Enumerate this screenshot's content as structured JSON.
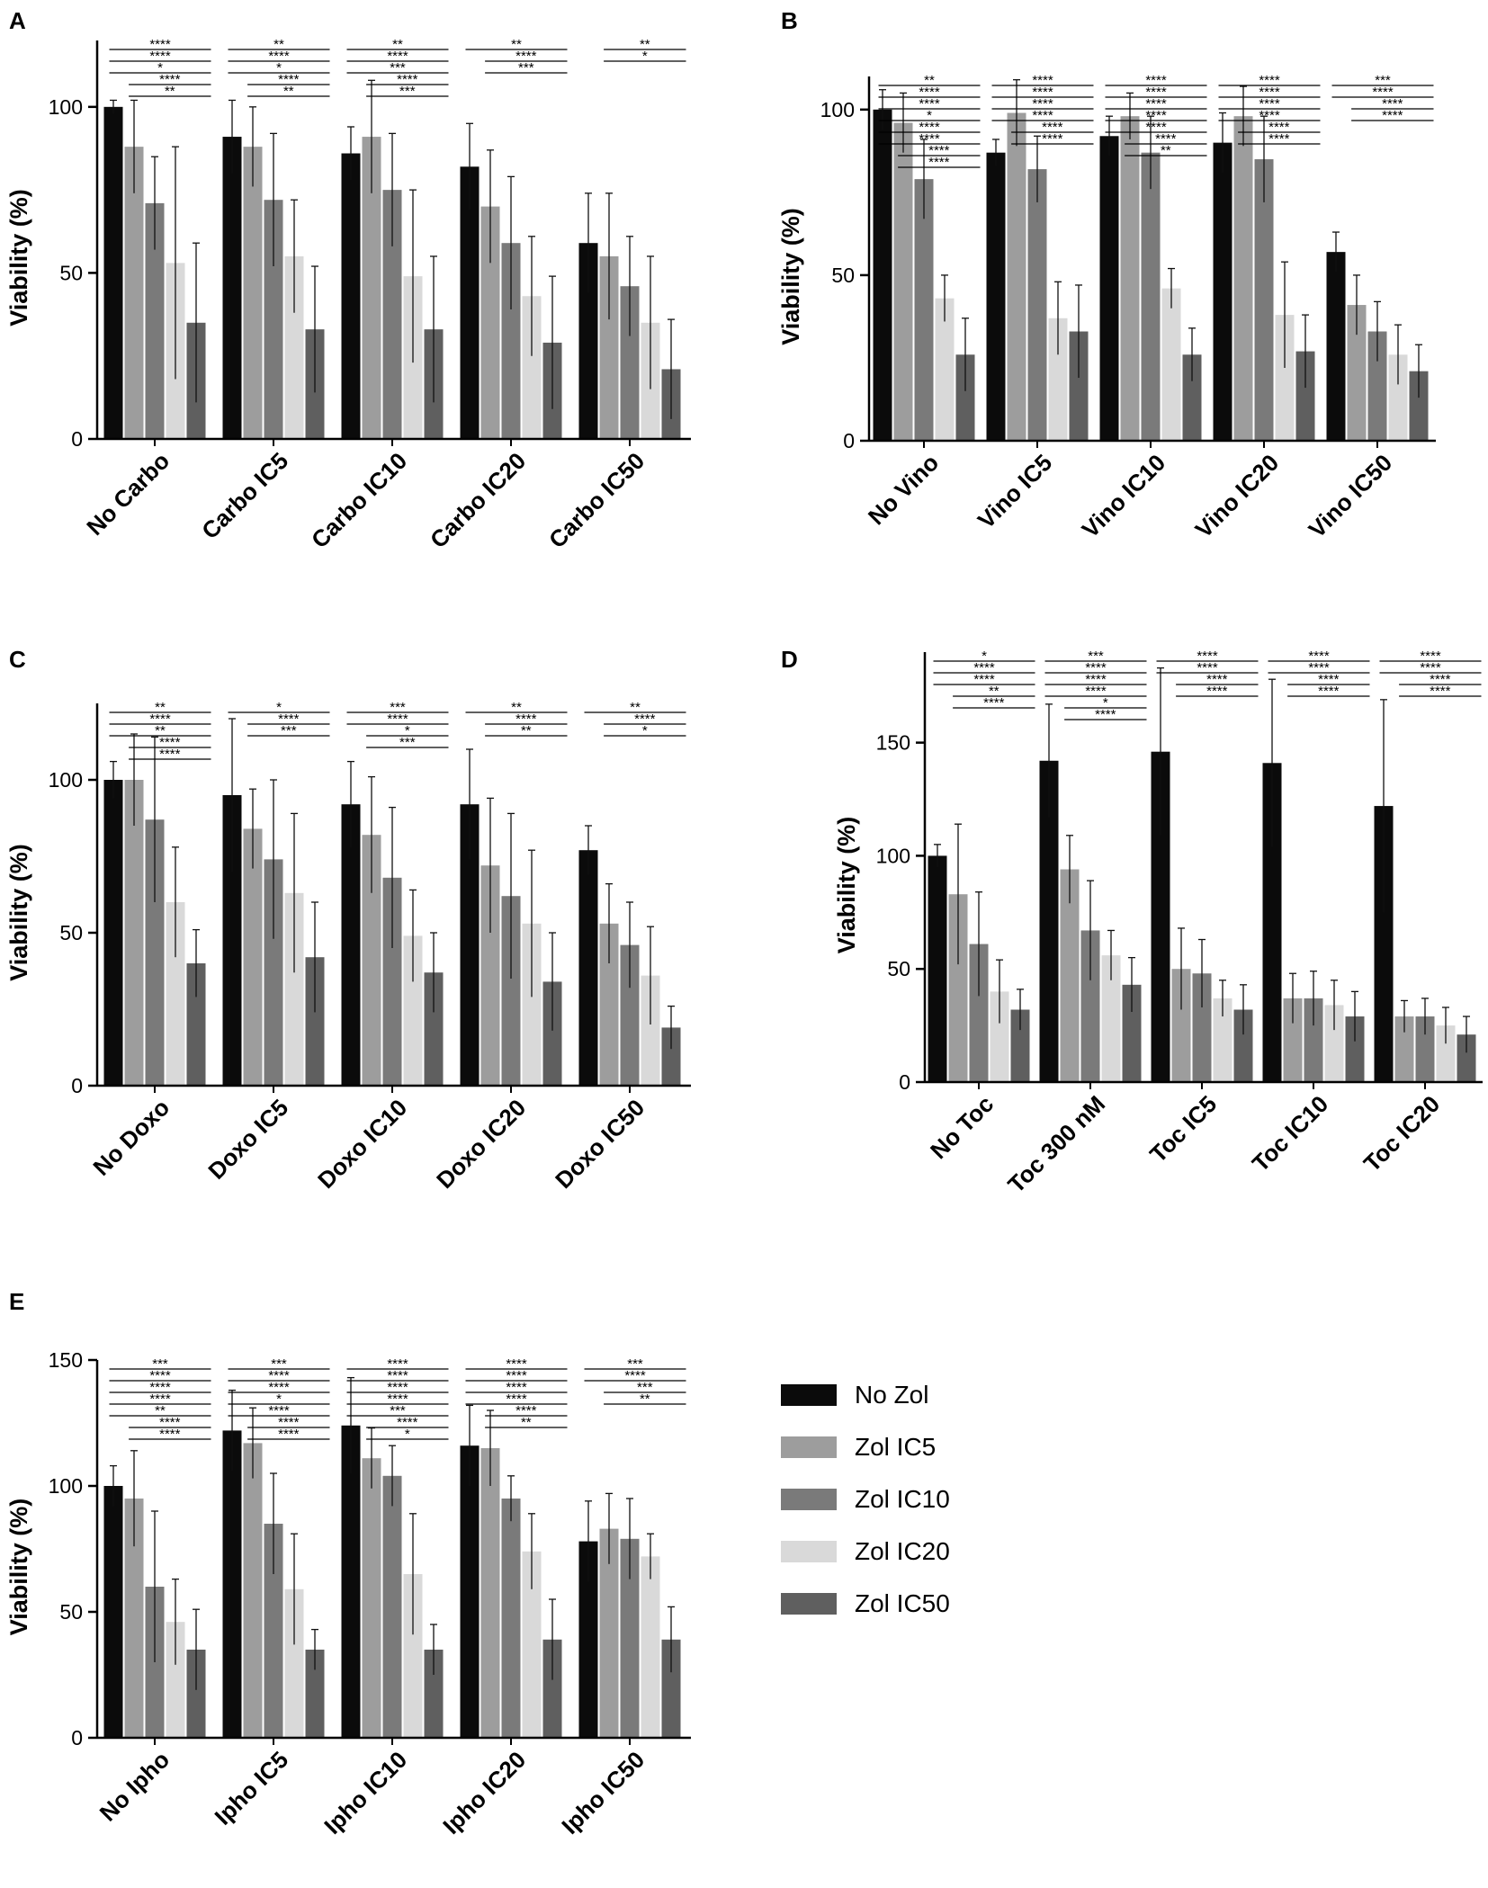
{
  "figure": {
    "panel_letters": [
      "A",
      "B",
      "C",
      "D",
      "E"
    ],
    "legend_title_hidden": "",
    "series_names": [
      "No Zol",
      "Zol IC5",
      "Zol IC10",
      "Zol IC20",
      "Zol IC50"
    ],
    "series_colors": [
      "#0b0b0b",
      "#9d9d9d",
      "#7a7a7a",
      "#d9d9d9",
      "#5f5f5f"
    ]
  },
  "legend": {
    "items": [
      {
        "label": "No Zol",
        "color": "#0b0b0b"
      },
      {
        "label": "Zol IC5",
        "color": "#9d9d9d"
      },
      {
        "label": "Zol IC10",
        "color": "#7a7a7a"
      },
      {
        "label": "Zol IC20",
        "color": "#d9d9d9"
      },
      {
        "label": "Zol IC50",
        "color": "#5f5f5f"
      }
    ]
  },
  "chart_data": [
    {
      "panel": "A",
      "type": "bar",
      "ylabel": "Viability (%)",
      "ylim": [
        0,
        120
      ],
      "yticks": [
        0,
        50,
        100
      ],
      "categories": [
        "No Carbo",
        "Carbo IC5",
        "Carbo IC10",
        "Carbo IC20",
        "Carbo IC50"
      ],
      "series": [
        {
          "name": "No Zol",
          "values": [
            100,
            91,
            86,
            82,
            59
          ],
          "errors": [
            2,
            11,
            8,
            13,
            15
          ]
        },
        {
          "name": "Zol IC5",
          "values": [
            88,
            88,
            91,
            70,
            55
          ],
          "errors": [
            14,
            12,
            17,
            17,
            19
          ]
        },
        {
          "name": "Zol IC10",
          "values": [
            71,
            72,
            75,
            59,
            46
          ],
          "errors": [
            14,
            20,
            17,
            20,
            15
          ]
        },
        {
          "name": "Zol IC20",
          "values": [
            53,
            55,
            49,
            43,
            35
          ],
          "errors": [
            35,
            17,
            26,
            18,
            20
          ]
        },
        {
          "name": "Zol IC50",
          "values": [
            35,
            33,
            33,
            29,
            21
          ],
          "errors": [
            24,
            19,
            22,
            20,
            15
          ]
        }
      ],
      "significance": [
        {
          "cat": 0,
          "labels": [
            "****",
            "****",
            "*",
            "****",
            "**"
          ]
        },
        {
          "cat": 1,
          "labels": [
            "**",
            "****",
            "*",
            "****",
            "**"
          ]
        },
        {
          "cat": 2,
          "labels": [
            "**",
            "****",
            "***",
            "****",
            "***"
          ]
        },
        {
          "cat": 3,
          "labels": [
            "**",
            "****",
            "***"
          ]
        },
        {
          "cat": 4,
          "labels": [
            "**",
            "*"
          ]
        }
      ]
    },
    {
      "panel": "B",
      "type": "bar",
      "ylabel": "Viability (%)",
      "ylim": [
        0,
        110
      ],
      "yticks": [
        0,
        50,
        100
      ],
      "categories": [
        "No Vino",
        "Vino IC5",
        "Vino IC10",
        "Vino IC20",
        "Vino IC50"
      ],
      "series": [
        {
          "name": "No Zol",
          "values": [
            100,
            87,
            92,
            90,
            57
          ],
          "errors": [
            6,
            4,
            6,
            9,
            6
          ]
        },
        {
          "name": "Zol IC5",
          "values": [
            96,
            99,
            98,
            98,
            41
          ],
          "errors": [
            9,
            10,
            7,
            9,
            9
          ]
        },
        {
          "name": "Zol IC10",
          "values": [
            79,
            82,
            87,
            85,
            33
          ],
          "errors": [
            12,
            10,
            11,
            13,
            9
          ]
        },
        {
          "name": "Zol IC20",
          "values": [
            43,
            37,
            46,
            38,
            26
          ],
          "errors": [
            7,
            11,
            6,
            16,
            9
          ]
        },
        {
          "name": "Zol IC50",
          "values": [
            26,
            33,
            26,
            27,
            21
          ],
          "errors": [
            11,
            14,
            8,
            11,
            8
          ]
        }
      ],
      "significance": [
        {
          "cat": 0,
          "labels": [
            "**",
            "****",
            "****",
            "*",
            "****",
            "****",
            "****",
            "****"
          ]
        },
        {
          "cat": 1,
          "labels": [
            "****",
            "****",
            "****",
            "****",
            "****",
            "****"
          ]
        },
        {
          "cat": 2,
          "labels": [
            "****",
            "****",
            "****",
            "****",
            "****",
            "****",
            "**"
          ]
        },
        {
          "cat": 3,
          "labels": [
            "****",
            "****",
            "****",
            "****",
            "****",
            "****"
          ]
        },
        {
          "cat": 4,
          "labels": [
            "***",
            "****",
            "****",
            "****"
          ]
        }
      ]
    },
    {
      "panel": "C",
      "type": "bar",
      "ylabel": "Viability (%)",
      "ylim": [
        0,
        125
      ],
      "yticks": [
        0,
        50,
        100
      ],
      "categories": [
        "No Doxo",
        "Doxo IC5",
        "Doxo IC10",
        "Doxo IC20",
        "Doxo IC50"
      ],
      "series": [
        {
          "name": "No Zol",
          "values": [
            100,
            95,
            92,
            92,
            77
          ],
          "errors": [
            6,
            25,
            14,
            18,
            8
          ]
        },
        {
          "name": "Zol IC5",
          "values": [
            100,
            84,
            82,
            72,
            53
          ],
          "errors": [
            15,
            13,
            19,
            22,
            13
          ]
        },
        {
          "name": "Zol IC10",
          "values": [
            87,
            74,
            68,
            62,
            46
          ],
          "errors": [
            27,
            26,
            23,
            27,
            14
          ]
        },
        {
          "name": "Zol IC20",
          "values": [
            60,
            63,
            49,
            53,
            36
          ],
          "errors": [
            18,
            26,
            15,
            24,
            16
          ]
        },
        {
          "name": "Zol IC50",
          "values": [
            40,
            42,
            37,
            34,
            19
          ],
          "errors": [
            11,
            18,
            13,
            16,
            7
          ]
        }
      ],
      "significance": [
        {
          "cat": 0,
          "labels": [
            "**",
            "****",
            "**",
            "****",
            "****"
          ]
        },
        {
          "cat": 1,
          "labels": [
            "*",
            "****",
            "***"
          ]
        },
        {
          "cat": 2,
          "labels": [
            "***",
            "****",
            "*",
            "***"
          ]
        },
        {
          "cat": 3,
          "labels": [
            "**",
            "****",
            "**"
          ]
        },
        {
          "cat": 4,
          "labels": [
            "**",
            "****",
            "*"
          ]
        }
      ]
    },
    {
      "panel": "D",
      "type": "bar",
      "ylabel": "Viability (%)",
      "ylim": [
        0,
        190
      ],
      "yticks": [
        0,
        50,
        100,
        150
      ],
      "categories": [
        "No Toc",
        "Toc 300 nM",
        "Toc IC5",
        "Toc IC10",
        "Toc IC20"
      ],
      "series": [
        {
          "name": "No Zol",
          "values": [
            100,
            142,
            146,
            141,
            122
          ],
          "errors": [
            5,
            25,
            37,
            37,
            47
          ]
        },
        {
          "name": "Zol IC5",
          "values": [
            83,
            94,
            50,
            37,
            29
          ],
          "errors": [
            31,
            15,
            18,
            11,
            7
          ]
        },
        {
          "name": "Zol IC10",
          "values": [
            61,
            67,
            48,
            37,
            29
          ],
          "errors": [
            23,
            22,
            15,
            12,
            8
          ]
        },
        {
          "name": "Zol IC20",
          "values": [
            40,
            56,
            37,
            34,
            25
          ],
          "errors": [
            14,
            11,
            8,
            11,
            8
          ]
        },
        {
          "name": "Zol IC50",
          "values": [
            32,
            43,
            32,
            29,
            21
          ],
          "errors": [
            9,
            12,
            11,
            11,
            8
          ]
        }
      ],
      "significance": [
        {
          "cat": 0,
          "labels": [
            "*",
            "****",
            "****",
            "**",
            "****"
          ]
        },
        {
          "cat": 1,
          "labels": [
            "***",
            "****",
            "****",
            "****",
            "*",
            "****"
          ]
        },
        {
          "cat": 2,
          "labels": [
            "****",
            "****",
            "****",
            "****"
          ]
        },
        {
          "cat": 3,
          "labels": [
            "****",
            "****",
            "****",
            "****"
          ]
        },
        {
          "cat": 4,
          "labels": [
            "****",
            "****",
            "****",
            "****"
          ]
        }
      ]
    },
    {
      "panel": "E",
      "type": "bar",
      "ylabel": "Viability (%)",
      "ylim": [
        0,
        150
      ],
      "yticks": [
        0,
        50,
        100,
        150
      ],
      "categories": [
        "No Ipho",
        "Ipho IC5",
        "Ipho IC10",
        "Ipho IC20",
        "Ipho IC50"
      ],
      "series": [
        {
          "name": "No Zol",
          "values": [
            100,
            122,
            124,
            116,
            78
          ],
          "errors": [
            8,
            16,
            19,
            16,
            16
          ]
        },
        {
          "name": "Zol IC5",
          "values": [
            95,
            117,
            111,
            115,
            83
          ],
          "errors": [
            19,
            14,
            12,
            15,
            14
          ]
        },
        {
          "name": "Zol IC10",
          "values": [
            60,
            85,
            104,
            95,
            79
          ],
          "errors": [
            30,
            20,
            12,
            9,
            16
          ]
        },
        {
          "name": "Zol IC20",
          "values": [
            46,
            59,
            65,
            74,
            72
          ],
          "errors": [
            17,
            22,
            24,
            15,
            9
          ]
        },
        {
          "name": "Zol IC50",
          "values": [
            35,
            35,
            35,
            39,
            39
          ],
          "errors": [
            16,
            8,
            10,
            16,
            13
          ]
        }
      ],
      "significance": [
        {
          "cat": 0,
          "labels": [
            "***",
            "****",
            "****",
            "****",
            "**",
            "****",
            "****"
          ]
        },
        {
          "cat": 1,
          "labels": [
            "***",
            "****",
            "****",
            "*",
            "****",
            "****",
            "****"
          ]
        },
        {
          "cat": 2,
          "labels": [
            "****",
            "****",
            "****",
            "****",
            "***",
            "****",
            "*"
          ]
        },
        {
          "cat": 3,
          "labels": [
            "****",
            "****",
            "****",
            "****",
            "****",
            "**"
          ]
        },
        {
          "cat": 4,
          "labels": [
            "***",
            "****",
            "***",
            "**"
          ]
        }
      ]
    }
  ]
}
